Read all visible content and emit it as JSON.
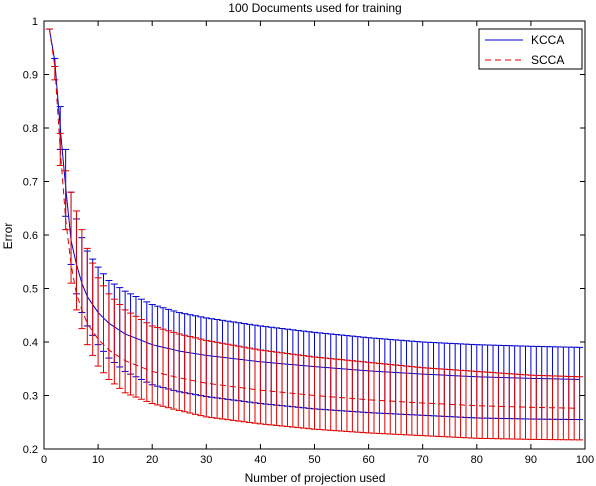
{
  "chart_data": {
    "type": "line",
    "title": "100 Documents used for training",
    "xlabel": "Number of projection used",
    "ylabel": "Error",
    "xlim": [
      0,
      100
    ],
    "ylim": [
      0.2,
      1.0
    ],
    "xticks": [
      0,
      10,
      20,
      30,
      40,
      50,
      60,
      70,
      80,
      90,
      100
    ],
    "yticks": [
      0.2,
      0.3,
      0.4,
      0.5,
      0.6,
      0.7,
      0.8,
      0.9,
      1.0
    ],
    "xtick_labels": [
      "0",
      "10",
      "20",
      "30",
      "40",
      "50",
      "60",
      "70",
      "80",
      "90",
      "100"
    ],
    "ytick_labels": [
      "0.2",
      "0.3",
      "0.4",
      "0.5",
      "0.6",
      "0.7",
      "0.8",
      "0.9",
      "1"
    ],
    "grid": false,
    "legend_position": "top-right",
    "x": [
      1,
      2,
      3,
      4,
      5,
      6,
      7,
      8,
      10,
      12,
      15,
      20,
      25,
      30,
      40,
      50,
      60,
      70,
      80,
      90,
      99
    ],
    "series": [
      {
        "name": "KCCA",
        "color": "#0000cc",
        "line_style": "solid",
        "mean": [
          0.985,
          0.925,
          0.8,
          0.69,
          0.59,
          0.545,
          0.51,
          0.485,
          0.455,
          0.435,
          0.415,
          0.395,
          0.383,
          0.375,
          0.363,
          0.354,
          0.346,
          0.34,
          0.335,
          0.332,
          0.33
        ],
        "upper": [
          0.985,
          0.93,
          0.84,
          0.76,
          0.68,
          0.63,
          0.595,
          0.57,
          0.54,
          0.515,
          0.495,
          0.47,
          0.455,
          0.445,
          0.43,
          0.418,
          0.408,
          0.4,
          0.395,
          0.392,
          0.39
        ],
        "lower": [
          0.985,
          0.915,
          0.76,
          0.635,
          0.545,
          0.49,
          0.455,
          0.43,
          0.395,
          0.37,
          0.345,
          0.32,
          0.307,
          0.298,
          0.285,
          0.275,
          0.268,
          0.263,
          0.258,
          0.256,
          0.255
        ]
      },
      {
        "name": "SCCA",
        "color": "#dd0000",
        "line_style": "dashed",
        "mean": [
          0.985,
          0.915,
          0.76,
          0.63,
          0.545,
          0.49,
          0.46,
          0.435,
          0.405,
          0.385,
          0.365,
          0.345,
          0.333,
          0.323,
          0.31,
          0.3,
          0.292,
          0.286,
          0.281,
          0.278,
          0.276
        ],
        "upper": [
          0.985,
          0.915,
          0.79,
          0.72,
          0.68,
          0.645,
          0.61,
          0.575,
          0.52,
          0.49,
          0.46,
          0.43,
          0.415,
          0.403,
          0.385,
          0.372,
          0.362,
          0.352,
          0.345,
          0.338,
          0.335
        ],
        "lower": [
          0.985,
          0.89,
          0.73,
          0.61,
          0.51,
          0.46,
          0.425,
          0.395,
          0.355,
          0.33,
          0.305,
          0.285,
          0.272,
          0.26,
          0.247,
          0.237,
          0.23,
          0.225,
          0.22,
          0.218,
          0.217
        ]
      }
    ]
  }
}
